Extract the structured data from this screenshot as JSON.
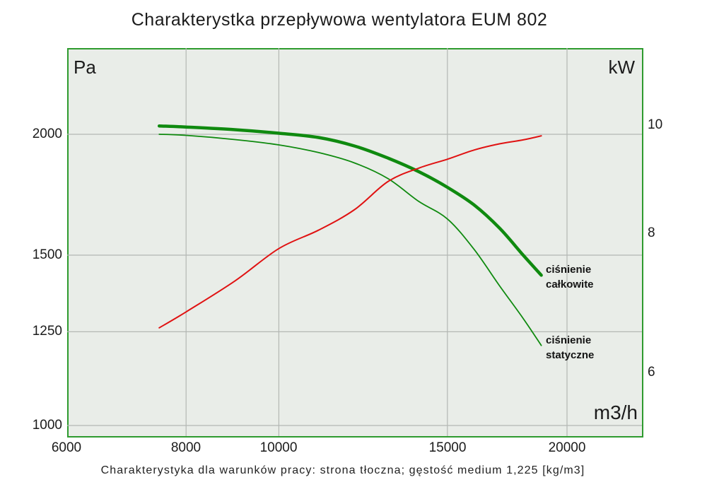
{
  "title": "Charakterystka przepływowa wentylatora EUM 802",
  "caption": "Charakterystyka dla warunków pracy: strona tłoczna; gęstość medium 1,225 [kg/m3]",
  "colors": {
    "plot_background": "#e9ede8",
    "plot_border": "#2e9b2e",
    "gridline": "#b3b7b3",
    "pressure_curves": "#0f8a0f",
    "power_curve": "#e01212",
    "text": "#1b1b1b"
  },
  "curve_labels": [
    {
      "line1": "ciśnienie",
      "line2": "całkowite"
    },
    {
      "line1": "ciśnienie",
      "line2": "statyczne"
    }
  ],
  "chart_data": {
    "type": "line",
    "title": "Charakterystka przepływowa wentylatora EUM 802",
    "x_label": "m3/h",
    "y_left_label": "Pa",
    "y_right_label": "kW",
    "x_scale": "log",
    "y_scale": "log",
    "grid": true,
    "legend": "inline-labels-right-of-curves",
    "x_ticks": [
      6000,
      8000,
      10000,
      15000,
      20000
    ],
    "y_left_ticks": [
      2000,
      1500,
      1250,
      1000
    ],
    "y_right_ticks": [
      10,
      8,
      6
    ],
    "x_range": [
      6000,
      23800
    ],
    "y_left_range": [
      975,
      2455
    ],
    "y_right_range": [
      5.3,
      11.7
    ],
    "x": [
      7500,
      8000,
      9000,
      10000,
      11000,
      12000,
      13000,
      14000,
      15000,
      16000,
      17000,
      18000,
      18800
    ],
    "series": [
      {
        "name": "ciśnienie całkowite",
        "axis": "left",
        "unit": "Pa",
        "color": "#0f8a0f",
        "stroke_width": 4.5,
        "values": [
          2040,
          2035,
          2022,
          2005,
          1985,
          1945,
          1890,
          1830,
          1763,
          1690,
          1600,
          1500,
          1430
        ]
      },
      {
        "name": "ciśnienie statyczne",
        "axis": "left",
        "unit": "Pa",
        "color": "#0f8a0f",
        "stroke_width": 1.8,
        "values": [
          2000,
          1995,
          1975,
          1950,
          1915,
          1868,
          1800,
          1705,
          1635,
          1520,
          1395,
          1290,
          1210
        ]
      },
      {
        "name": "kW",
        "axis": "right",
        "unit": "kW",
        "color": "#e01212",
        "stroke_width": 2,
        "values": [
          6.58,
          6.8,
          7.25,
          7.75,
          8.05,
          8.4,
          8.9,
          9.15,
          9.32,
          9.5,
          9.62,
          9.7,
          9.78
        ]
      }
    ]
  }
}
